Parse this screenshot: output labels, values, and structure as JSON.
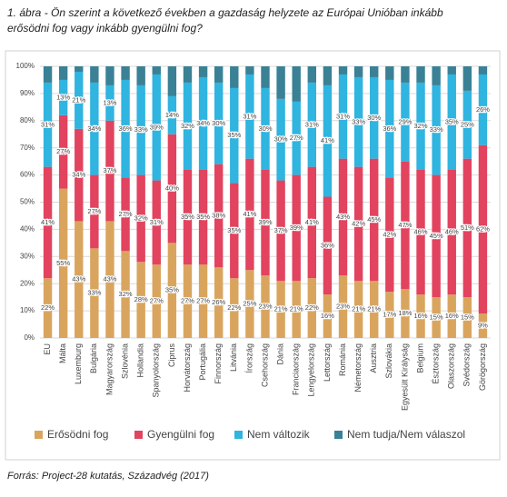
{
  "chart_data": {
    "type": "stacked-bar",
    "title": "1.   ábra - Ön szerint a következő években a gazdaság helyzete az Európai Unióban inkább erősödni fog vagy inkább gyengülni fog?",
    "source": "Forrás: Project-28 kutatás, Századvég (2017)",
    "categories": [
      "EU",
      "Málta",
      "Luxemburg",
      "Bulgária",
      "Magyarország",
      "Szlovénia",
      "Hollandia",
      "Spanyolország",
      "Ciprus",
      "Horvátország",
      "Portugália",
      "Finnország",
      "Litvánia",
      "Írország",
      "Csehország",
      "Dánia",
      "Franciaország",
      "Lengyelország",
      "Lettország",
      "Románia",
      "Németország",
      "Ausztria",
      "Szlovákia",
      "Egyesült Királyság",
      "Belgium",
      "Észtország",
      "Olaszország",
      "Svédország",
      "Görögország"
    ],
    "series": [
      {
        "name": "Erősödni fog",
        "color": "#d9a55e",
        "values": [
          22,
          55,
          43,
          33,
          43,
          32,
          28,
          27,
          35,
          27,
          27,
          26,
          22,
          25,
          23,
          21,
          21,
          22,
          16,
          23,
          21,
          21,
          17,
          18,
          16,
          15,
          16,
          15,
          9
        ],
        "value_labels": [
          "22%",
          "55%",
          "43%",
          "33%",
          "43%",
          "32%",
          "28%",
          "27%",
          "35%",
          "27%",
          "27%",
          "26%",
          "22%",
          "25%",
          "23%",
          "21%",
          "21%",
          "22%",
          "16%",
          "23%",
          "21%",
          "21%",
          "17%",
          "18%",
          "16%",
          "15%",
          "16%",
          "15%",
          "9%"
        ]
      },
      {
        "name": "Gyengülni fog",
        "color": "#e2435f",
        "values": [
          41,
          27,
          34,
          27,
          37,
          27,
          32,
          31,
          40,
          35,
          35,
          38,
          35,
          41,
          39,
          37,
          39,
          41,
          36,
          43,
          42,
          45,
          42,
          47,
          46,
          45,
          46,
          51,
          62
        ],
        "value_labels": [
          "41%",
          "27%",
          "34%",
          "27%",
          "37%",
          "27%",
          "32%",
          "31%",
          "40%",
          "35%",
          "35%",
          "38%",
          "35%",
          "41%",
          "39%",
          "37%",
          "39%",
          "41%",
          "36%",
          "43%",
          "42%",
          "45%",
          "42%",
          "47%",
          "46%",
          "45%",
          "46%",
          "51%",
          "62%"
        ]
      },
      {
        "name": "Nem változik",
        "color": "#30b4e0",
        "values": [
          31,
          13,
          21,
          34,
          13,
          36,
          33,
          39,
          14,
          32,
          34,
          30,
          35,
          31,
          30,
          30,
          27,
          31,
          41,
          31,
          33,
          30,
          36,
          29,
          32,
          33,
          35,
          25,
          26
        ],
        "value_labels": [
          "31%",
          "13%",
          "21%",
          "34%",
          "13%",
          "36%",
          "33%",
          "39%",
          "14%",
          "32%",
          "34%",
          "30%",
          "35%",
          "31%",
          "30%",
          "30%",
          "27%",
          "31%",
          "41%",
          "31%",
          "33%",
          "30%",
          "36%",
          "29%",
          "32%",
          "33%",
          "35%",
          "25%",
          "26%"
        ]
      },
      {
        "name": "Nem tudja/Nem válaszol",
        "color": "#3a8196",
        "values": [
          6,
          5,
          2,
          6,
          7,
          5,
          7,
          3,
          11,
          6,
          4,
          6,
          8,
          3,
          8,
          12,
          13,
          6,
          7,
          3,
          4,
          4,
          5,
          6,
          6,
          7,
          3,
          9,
          3
        ]
      }
    ],
    "ylim": [
      0,
      100
    ],
    "yticks": [
      {
        "value": 0,
        "label": "0%"
      },
      {
        "value": 10,
        "label": "10%"
      },
      {
        "value": 20,
        "label": "20%"
      },
      {
        "value": 30,
        "label": "30%"
      },
      {
        "value": 40,
        "label": "40%"
      },
      {
        "value": 50,
        "label": "50%"
      },
      {
        "value": 60,
        "label": "60%"
      },
      {
        "value": 70,
        "label": "70%"
      },
      {
        "value": 80,
        "label": "80%"
      },
      {
        "value": 90,
        "label": "90%"
      },
      {
        "value": 100,
        "label": "100%"
      }
    ],
    "grid": true
  }
}
